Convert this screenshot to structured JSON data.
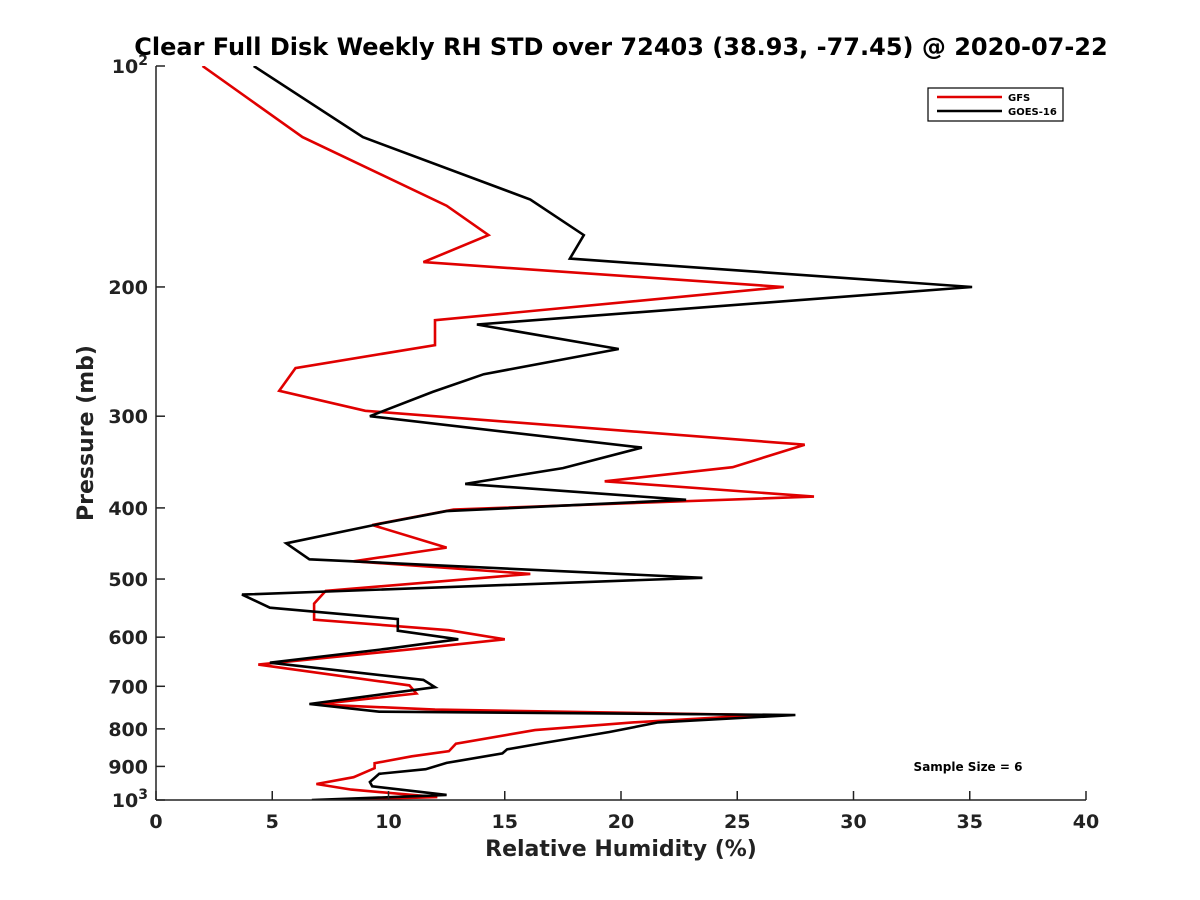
{
  "chart_data": {
    "type": "line",
    "title": "Clear Full Disk Weekly RH STD over 72403 (38.93, -77.45) @ 2020-07-22",
    "xlabel": "Relative Humidity (%)",
    "ylabel": "Pressure (mb)",
    "xlim": [
      0,
      40
    ],
    "ylim": [
      100,
      1000
    ],
    "yscale": "log",
    "y_reversed": true,
    "x_ticks": [
      "0",
      "5",
      "10",
      "15",
      "20",
      "25",
      "30",
      "35",
      "40"
    ],
    "x_tick_values": [
      0,
      5,
      10,
      15,
      20,
      25,
      30,
      35,
      40
    ],
    "y_ticks": [
      {
        "value": 100,
        "base": "10",
        "exp": "2",
        "label": ""
      },
      {
        "value": 200,
        "label": "200"
      },
      {
        "value": 300,
        "label": "300"
      },
      {
        "value": 400,
        "label": "400"
      },
      {
        "value": 500,
        "label": "500"
      },
      {
        "value": 600,
        "label": "600"
      },
      {
        "value": 700,
        "label": "700"
      },
      {
        "value": 800,
        "label": "800"
      },
      {
        "value": 900,
        "label": "900"
      },
      {
        "value": 1000,
        "base": "10",
        "exp": "3",
        "label": ""
      }
    ],
    "grid": false,
    "legend_position": "top-right",
    "annotation": "Sample Size = 6",
    "series": [
      {
        "name": "GFS",
        "color": "#e00000",
        "points": [
          [
            2.0,
            100
          ],
          [
            6.3,
            125
          ],
          [
            12.5,
            155
          ],
          [
            14.3,
            170
          ],
          [
            11.5,
            185
          ],
          [
            27.0,
            200
          ],
          [
            12.0,
            222
          ],
          [
            12.0,
            240
          ],
          [
            6.0,
            258
          ],
          [
            5.3,
            277
          ],
          [
            9.0,
            295
          ],
          [
            27.9,
            328
          ],
          [
            24.8,
            352
          ],
          [
            19.3,
            368
          ],
          [
            28.3,
            386
          ],
          [
            12.8,
            402
          ],
          [
            9.3,
            422
          ],
          [
            12.5,
            453
          ],
          [
            8.5,
            473
          ],
          [
            16.1,
            492
          ],
          [
            7.3,
            519
          ],
          [
            6.8,
            540
          ],
          [
            6.8,
            568
          ],
          [
            12.6,
            587
          ],
          [
            15.0,
            604
          ],
          [
            11.0,
            623
          ],
          [
            4.4,
            654
          ],
          [
            10.9,
            698
          ],
          [
            11.2,
            716
          ],
          [
            6.9,
            741
          ],
          [
            12.0,
            753
          ],
          [
            26.0,
            766
          ],
          [
            20.5,
            784
          ],
          [
            16.3,
            803
          ],
          [
            12.9,
            838
          ],
          [
            12.6,
            858
          ],
          [
            11.0,
            872
          ],
          [
            9.4,
            891
          ],
          [
            9.4,
            905
          ],
          [
            8.5,
            931
          ],
          [
            6.9,
            951
          ],
          [
            8.4,
            968
          ],
          [
            12.1,
            991
          ],
          [
            7.8,
            1000
          ]
        ]
      },
      {
        "name": "GOES-16",
        "color": "#000000",
        "points": [
          [
            4.2,
            100
          ],
          [
            8.9,
            125
          ],
          [
            16.1,
            152
          ],
          [
            18.4,
            170
          ],
          [
            17.8,
            183
          ],
          [
            35.1,
            200
          ],
          [
            13.8,
            225
          ],
          [
            19.9,
            243
          ],
          [
            14.1,
            263
          ],
          [
            11.9,
            278
          ],
          [
            9.2,
            300
          ],
          [
            20.9,
            331
          ],
          [
            17.5,
            353
          ],
          [
            13.3,
            371
          ],
          [
            22.8,
            390
          ],
          [
            12.5,
            404
          ],
          [
            9.7,
            420
          ],
          [
            5.6,
            447
          ],
          [
            6.6,
            470
          ],
          [
            23.5,
            498
          ],
          [
            3.7,
            525
          ],
          [
            4.9,
            547
          ],
          [
            10.4,
            567
          ],
          [
            10.4,
            588
          ],
          [
            13.0,
            604
          ],
          [
            10.0,
            622
          ],
          [
            4.9,
            650
          ],
          [
            11.5,
            686
          ],
          [
            12.0,
            702
          ],
          [
            6.6,
            740
          ],
          [
            9.6,
            758
          ],
          [
            27.5,
            766
          ],
          [
            21.6,
            784
          ],
          [
            19.5,
            808
          ],
          [
            16.7,
            836
          ],
          [
            15.1,
            853
          ],
          [
            14.9,
            864
          ],
          [
            12.5,
            890
          ],
          [
            11.6,
            908
          ],
          [
            9.6,
            921
          ],
          [
            9.2,
            945
          ],
          [
            9.3,
            958
          ],
          [
            12.5,
            984
          ],
          [
            9.8,
            992
          ],
          [
            6.7,
            1000
          ]
        ]
      }
    ]
  }
}
